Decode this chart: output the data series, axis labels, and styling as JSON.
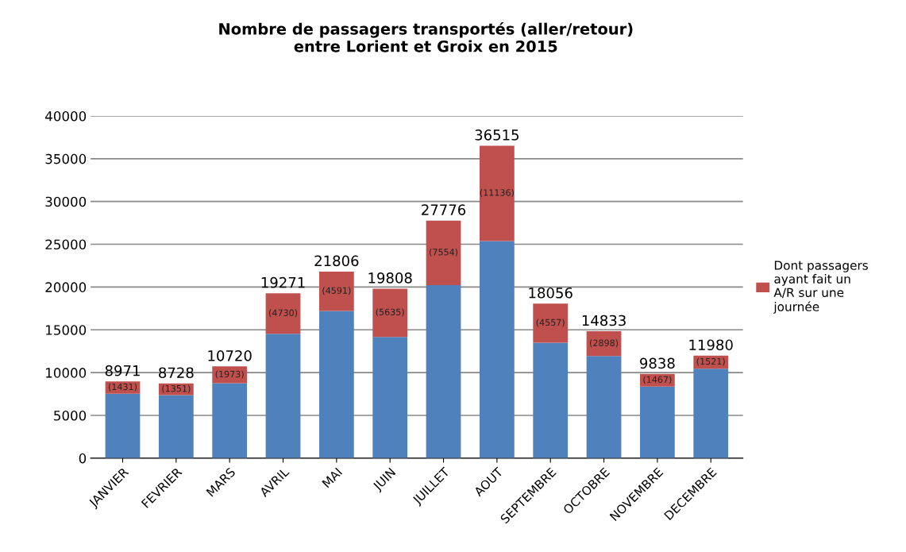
{
  "chart_data": {
    "type": "bar",
    "title": "Nombre de passagers transportés (aller/retour)\nentre Lorient et Groix en 2015",
    "categories": [
      "JANVIER",
      "FEVRIER",
      "MARS",
      "AVRIL",
      "MAI",
      "JUIN",
      "JUILLET",
      "AOUT",
      "SEPTEMBRE",
      "OCTOBRE",
      "NOVEMBRE",
      "DECEMBRE"
    ],
    "stacked": true,
    "series": [
      {
        "color": "#4f81bd",
        "values": [
          7540,
          7377,
          8747,
          14541,
          17215,
          14173,
          20222,
          25379,
          13499,
          11935,
          8371,
          10459
        ]
      },
      {
        "name": "Dont passagers ayant fait un A/R sur une journée",
        "color": "#c0504d",
        "values": [
          1431,
          1351,
          1973,
          4730,
          4591,
          5635,
          7554,
          11136,
          4557,
          2898,
          1467,
          1521
        ],
        "value_labels": [
          "(1431)",
          "(1351)",
          "(1973)",
          "(4730)",
          "(4591)",
          "(5635)",
          "(7554)",
          "(11136)",
          "(4557)",
          "(2898)",
          "(1467)",
          "(1521)"
        ]
      }
    ],
    "totals": [
      "8971",
      "8728",
      "10720",
      "19271",
      "21806",
      "19808",
      "27776",
      "36515",
      "18056",
      "14833",
      "9838",
      "11980"
    ],
    "ylim": [
      0,
      40000
    ],
    "yticks": [
      0,
      5000,
      10000,
      15000,
      20000,
      25000,
      30000,
      35000,
      40000
    ],
    "grid": "y",
    "legend": "right"
  }
}
